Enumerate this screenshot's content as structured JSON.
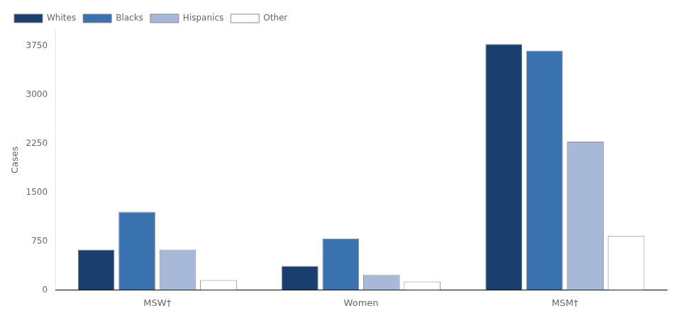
{
  "chart_data": {
    "type": "bar",
    "ylabel": "Cases",
    "categories": [
      "MSW†",
      "Women",
      "MSM†"
    ],
    "series": [
      {
        "name": "Whites",
        "color": "#1a3f6f",
        "values": [
          620,
          370,
          3780
        ]
      },
      {
        "name": "Blacks",
        "color": "#3a72b0",
        "values": [
          1200,
          790,
          3680
        ]
      },
      {
        "name": "Hispanics",
        "color": "#a8b8d8",
        "values": [
          620,
          230,
          2280
        ]
      },
      {
        "name": "Other",
        "color": "#ffffff",
        "values": [
          150,
          130,
          830
        ]
      }
    ],
    "ylim": [
      0,
      4000
    ],
    "yticks": [
      0,
      750,
      1500,
      2250,
      3000,
      3750
    ],
    "grid": false,
    "legend": "upper left"
  }
}
